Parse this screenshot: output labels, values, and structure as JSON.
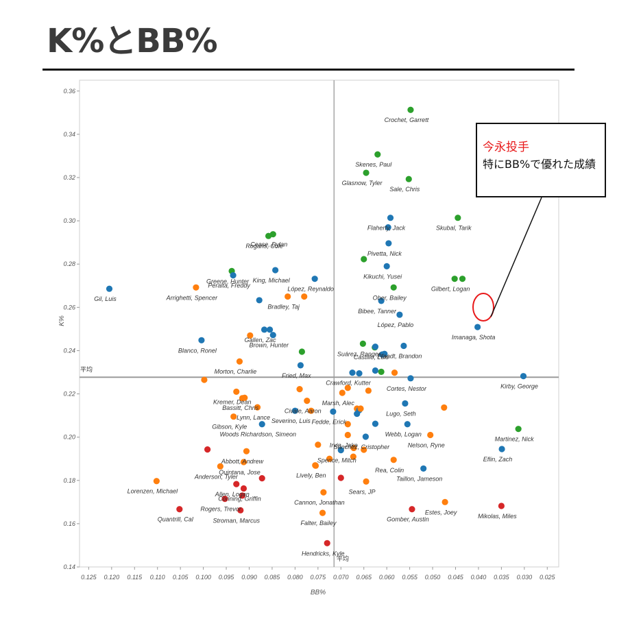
{
  "title": "K%とBB%",
  "callout": {
    "line1": "今永投手",
    "line2": "特にBB%で優れた成績"
  },
  "colors": {
    "blue": "#1f77b4",
    "orange": "#ff7f0e",
    "green": "#2ca02c",
    "red": "#d62728",
    "callout_red": "#e8191a"
  },
  "chart_data": {
    "type": "scatter",
    "xlabel": "BB%",
    "ylabel": "K%",
    "x_reversed": true,
    "xlim": [
      0.127,
      0.0225
    ],
    "ylim": [
      0.14,
      0.365
    ],
    "xticks": [
      "0.125",
      "0.120",
      "0.115",
      "0.110",
      "0.105",
      "0.100",
      "0.095",
      "0.090",
      "0.085",
      "0.080",
      "0.075",
      "0.070",
      "0.065",
      "0.060",
      "0.055",
      "0.050",
      "0.045",
      "0.040",
      "0.035",
      "0.030",
      "0.025"
    ],
    "yticks": [
      "0.14",
      "0.16",
      "0.18",
      "0.20",
      "0.22",
      "0.24",
      "0.26",
      "0.28",
      "0.30",
      "0.32",
      "0.34",
      "0.36"
    ],
    "reference_lines": {
      "x": 0.0715,
      "y": 0.2277,
      "x_label": "平均",
      "y_label": "平均"
    },
    "labeled_points": [
      {
        "label": "Crochet, Garrett",
        "x": 0.0548,
        "y": 0.3513,
        "color": "green"
      },
      {
        "label": "Skenes, Paul",
        "x": 0.062,
        "y": 0.3307,
        "color": "green"
      },
      {
        "label": "Glasnow, Tyler",
        "x": 0.0645,
        "y": 0.3222,
        "color": "green"
      },
      {
        "label": "Sale, Chris",
        "x": 0.0552,
        "y": 0.3193,
        "color": "green"
      },
      {
        "label": "Flaherty, Jack",
        "x": 0.0592,
        "y": 0.3014,
        "color": "blue"
      },
      {
        "label": "Skubal, Tarik",
        "x": 0.0445,
        "y": 0.3014,
        "color": "green"
      },
      {
        "label": "Cease, Dylan",
        "x": 0.0848,
        "y": 0.2938,
        "color": "green"
      },
      {
        "label": "Rogans, Cole",
        "x": 0.0858,
        "y": 0.293,
        "color": "green"
      },
      {
        "label": "Pivetta, Nick",
        "x": 0.0596,
        "y": 0.2896,
        "color": "blue"
      },
      {
        "label": "Kikuchi, Yusei",
        "x": 0.06,
        "y": 0.279,
        "color": "blue"
      },
      {
        "label": "Greene, Hunter",
        "x": 0.0938,
        "y": 0.2768,
        "color": "green"
      },
      {
        "label": "Peralta, Freddy",
        "x": 0.0935,
        "y": 0.2748,
        "color": "blue"
      },
      {
        "label": "King, Michael",
        "x": 0.0843,
        "y": 0.2772,
        "color": "blue"
      },
      {
        "label": "López, Reynaldo",
        "x": 0.0757,
        "y": 0.2732,
        "color": "blue"
      },
      {
        "label": "Gilbert, Logan",
        "x": 0.0452,
        "y": 0.2732,
        "color": "green"
      },
      {
        "label": "Ober, Bailey",
        "x": 0.0585,
        "y": 0.2692,
        "color": "green"
      },
      {
        "label": "Gil, Luis",
        "x": 0.1205,
        "y": 0.2686,
        "color": "blue"
      },
      {
        "label": "Arrighetti, Spencer",
        "x": 0.1016,
        "y": 0.2692,
        "color": "orange"
      },
      {
        "label": "Bradley, Taj",
        "x": 0.0816,
        "y": 0.265,
        "color": "orange"
      },
      {
        "label": "Bibee, Tanner",
        "x": 0.0612,
        "y": 0.263,
        "color": "blue"
      },
      {
        "label": "Gallen, Zac",
        "x": 0.0867,
        "y": 0.2497,
        "color": "blue"
      },
      {
        "label": "López, Pablo",
        "x": 0.0572,
        "y": 0.2566,
        "color": "blue"
      },
      {
        "label": "Imanaga, Shota",
        "x": 0.0402,
        "y": 0.2509,
        "color": "blue"
      },
      {
        "label": "Castillo, Luis",
        "x": 0.0625,
        "y": 0.2418,
        "color": "blue"
      },
      {
        "label": "Blanco, Ronel",
        "x": 0.1004,
        "y": 0.2448,
        "color": "blue"
      },
      {
        "label": "Brown, Hunter",
        "x": 0.0848,
        "y": 0.2472,
        "color": "blue"
      },
      {
        "label": "Pfaadt, Brandon",
        "x": 0.0563,
        "y": 0.2422,
        "color": "blue"
      },
      {
        "label": "Suárez, Ranger",
        "x": 0.0652,
        "y": 0.2432,
        "color": "green"
      },
      {
        "label": "Morton, Charlie",
        "x": 0.0921,
        "y": 0.235,
        "color": "orange"
      },
      {
        "label": "Fried, Max",
        "x": 0.0788,
        "y": 0.2332,
        "color": "blue"
      },
      {
        "label": "Crawford, Kutter",
        "x": 0.0675,
        "y": 0.2298,
        "color": "blue"
      },
      {
        "label": "Kirby, George",
        "x": 0.0302,
        "y": 0.2282,
        "color": "blue"
      },
      {
        "label": "Cortes, Nestor",
        "x": 0.0548,
        "y": 0.2272,
        "color": "blue"
      },
      {
        "label": "Kremer, Dean",
        "x": 0.0928,
        "y": 0.221,
        "color": "orange"
      },
      {
        "label": "Bassitt, Chris",
        "x": 0.091,
        "y": 0.2182,
        "color": "orange"
      },
      {
        "label": "Civale, Aaron",
        "x": 0.0774,
        "y": 0.2168,
        "color": "orange"
      },
      {
        "label": "Marsh, Alec",
        "x": 0.0697,
        "y": 0.2205,
        "color": "orange"
      },
      {
        "label": "Lugo, Seth",
        "x": 0.056,
        "y": 0.2156,
        "color": "blue"
      },
      {
        "label": "Lynn, Lance",
        "x": 0.0882,
        "y": 0.2138,
        "color": "orange"
      },
      {
        "label": "Gibson, Kyle",
        "x": 0.0934,
        "y": 0.2095,
        "color": "orange"
      },
      {
        "label": "Severino, Luis",
        "x": 0.08,
        "y": 0.2122,
        "color": "blue"
      },
      {
        "label": "Fedde, Erick",
        "x": 0.0717,
        "y": 0.2118,
        "color": "blue"
      },
      {
        "label": "Webb, Logan",
        "x": 0.0555,
        "y": 0.206,
        "color": "blue"
      },
      {
        "label": "Martinez, Nick",
        "x": 0.0313,
        "y": 0.2038,
        "color": "green"
      },
      {
        "label": "Woods Richardson, Simeon",
        "x": 0.0872,
        "y": 0.206,
        "color": "blue"
      },
      {
        "label": "Irvin, Jake",
        "x": 0.0685,
        "y": 0.201,
        "color": "orange"
      },
      {
        "label": "Sánchez, Cristopher",
        "x": 0.0646,
        "y": 0.2002,
        "color": "blue"
      },
      {
        "label": "Nelson, Ryne",
        "x": 0.0505,
        "y": 0.201,
        "color": "orange"
      },
      {
        "label": "Eflin, Zach",
        "x": 0.0349,
        "y": 0.1945,
        "color": "blue"
      },
      {
        "label": "Abbott, Andrew",
        "x": 0.0906,
        "y": 0.1935,
        "color": "orange"
      },
      {
        "label": "Spence, Mitch",
        "x": 0.07,
        "y": 0.194,
        "color": "blue"
      },
      {
        "label": "Anderson, Tyler",
        "x": 0.0963,
        "y": 0.1865,
        "color": "orange"
      },
      {
        "label": "Quintana, Jose",
        "x": 0.0912,
        "y": 0.1885,
        "color": "orange"
      },
      {
        "label": "Rea, Colin",
        "x": 0.0585,
        "y": 0.1895,
        "color": "orange"
      },
      {
        "label": "Lively, Ben",
        "x": 0.0756,
        "y": 0.187,
        "color": "orange"
      },
      {
        "label": "Taillon, Jameson",
        "x": 0.052,
        "y": 0.1855,
        "color": "blue"
      },
      {
        "label": "Allen, Logan",
        "x": 0.0928,
        "y": 0.1783,
        "color": "red"
      },
      {
        "label": "Conning, Griffin",
        "x": 0.0912,
        "y": 0.1763,
        "color": "red"
      },
      {
        "label": "Cannon, Jonathan",
        "x": 0.0738,
        "y": 0.1745,
        "color": "orange"
      },
      {
        "label": "Sears, JP",
        "x": 0.0645,
        "y": 0.1795,
        "color": "orange"
      },
      {
        "label": "Lorenzen, Michael",
        "x": 0.1102,
        "y": 0.1797,
        "color": "orange"
      },
      {
        "label": "Rogers, Trevor",
        "x": 0.0953,
        "y": 0.1715,
        "color": "red"
      },
      {
        "label": "Estes, Joey",
        "x": 0.0473,
        "y": 0.17,
        "color": "orange"
      },
      {
        "label": "Mikolas, Miles",
        "x": 0.035,
        "y": 0.1682,
        "color": "red"
      },
      {
        "label": "Quantrill, Cal",
        "x": 0.1052,
        "y": 0.1667,
        "color": "red"
      },
      {
        "label": "Stroman, Marcus",
        "x": 0.0919,
        "y": 0.1662,
        "color": "red"
      },
      {
        "label": "Gomber, Austin",
        "x": 0.0545,
        "y": 0.1667,
        "color": "red"
      },
      {
        "label": "Falter, Bailey",
        "x": 0.074,
        "y": 0.165,
        "color": "orange"
      },
      {
        "label": "Hendricks, Kyle",
        "x": 0.073,
        "y": 0.151,
        "color": "red"
      }
    ],
    "unlabeled_points": [
      {
        "x": 0.0597,
        "y": 0.297,
        "color": "blue"
      },
      {
        "x": 0.065,
        "y": 0.2823,
        "color": "green"
      },
      {
        "x": 0.0878,
        "y": 0.2633,
        "color": "blue"
      },
      {
        "x": 0.078,
        "y": 0.265,
        "color": "orange"
      },
      {
        "x": 0.0435,
        "y": 0.2732,
        "color": "green"
      },
      {
        "x": 0.0898,
        "y": 0.247,
        "color": "orange"
      },
      {
        "x": 0.0855,
        "y": 0.2497,
        "color": "blue"
      },
      {
        "x": 0.0785,
        "y": 0.2395,
        "color": "green"
      },
      {
        "x": 0.0626,
        "y": 0.2415,
        "color": "green"
      },
      {
        "x": 0.061,
        "y": 0.2382,
        "color": "blue"
      },
      {
        "x": 0.0605,
        "y": 0.2385,
        "color": "blue"
      },
      {
        "x": 0.066,
        "y": 0.2295,
        "color": "blue"
      },
      {
        "x": 0.0625,
        "y": 0.2308,
        "color": "blue"
      },
      {
        "x": 0.0612,
        "y": 0.2302,
        "color": "green"
      },
      {
        "x": 0.0583,
        "y": 0.2298,
        "color": "orange"
      },
      {
        "x": 0.0998,
        "y": 0.2265,
        "color": "orange"
      },
      {
        "x": 0.079,
        "y": 0.2222,
        "color": "orange"
      },
      {
        "x": 0.0685,
        "y": 0.2228,
        "color": "orange"
      },
      {
        "x": 0.064,
        "y": 0.2215,
        "color": "orange"
      },
      {
        "x": 0.0915,
        "y": 0.218,
        "color": "orange"
      },
      {
        "x": 0.0765,
        "y": 0.2122,
        "color": "orange"
      },
      {
        "x": 0.0665,
        "y": 0.2132,
        "color": "orange"
      },
      {
        "x": 0.066,
        "y": 0.2125,
        "color": "blue"
      },
      {
        "x": 0.0657,
        "y": 0.2132,
        "color": "orange"
      },
      {
        "x": 0.0475,
        "y": 0.2137,
        "color": "orange"
      },
      {
        "x": 0.0665,
        "y": 0.2108,
        "color": "blue"
      },
      {
        "x": 0.0685,
        "y": 0.206,
        "color": "orange"
      },
      {
        "x": 0.0625,
        "y": 0.2062,
        "color": "blue"
      },
      {
        "x": 0.075,
        "y": 0.1965,
        "color": "orange"
      },
      {
        "x": 0.0725,
        "y": 0.19,
        "color": "orange"
      },
      {
        "x": 0.0673,
        "y": 0.191,
        "color": "orange"
      },
      {
        "x": 0.0672,
        "y": 0.195,
        "color": "orange"
      },
      {
        "x": 0.065,
        "y": 0.1942,
        "color": "orange"
      },
      {
        "x": 0.0991,
        "y": 0.1943,
        "color": "red"
      },
      {
        "x": 0.0755,
        "y": 0.1868,
        "color": "orange"
      },
      {
        "x": 0.07,
        "y": 0.1812,
        "color": "red"
      },
      {
        "x": 0.0872,
        "y": 0.181,
        "color": "red"
      },
      {
        "x": 0.0915,
        "y": 0.173,
        "color": "red"
      }
    ]
  }
}
